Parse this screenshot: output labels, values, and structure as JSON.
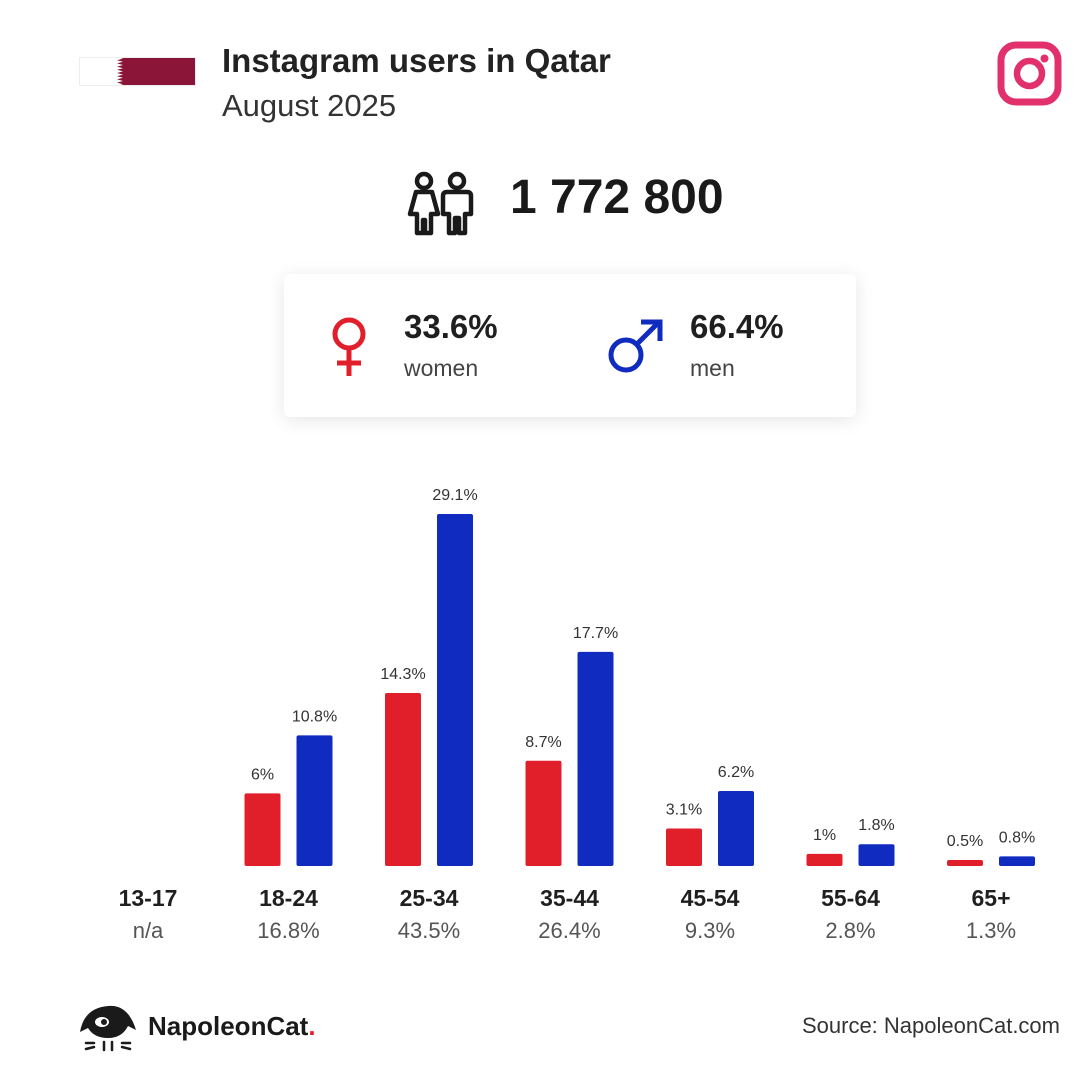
{
  "header": {
    "title": "Instagram users in Qatar",
    "subtitle": "August 2025",
    "flag_colors": [
      "#ffffff",
      "#8a1538"
    ],
    "logo_icon": "instagram-icon",
    "logo_color": "#e1306c"
  },
  "total": {
    "icon": "people-icon",
    "value": "1 772 800"
  },
  "gender": {
    "women": {
      "icon": "female-symbol-icon",
      "percent": "33.6%",
      "label": "women",
      "color": "#e01f2b"
    },
    "men": {
      "icon": "male-symbol-icon",
      "percent": "66.4%",
      "label": "men",
      "color": "#0f2bc0"
    }
  },
  "chart_data": {
    "type": "bar",
    "categories": [
      "13-17",
      "18-24",
      "25-34",
      "35-44",
      "45-54",
      "55-64",
      "65+"
    ],
    "category_totals": [
      "n/a",
      "16.8%",
      "43.5%",
      "26.4%",
      "9.3%",
      "2.8%",
      "1.3%"
    ],
    "series": [
      {
        "values": [
          null,
          6,
          14.3,
          8.7,
          3.1,
          1,
          0.5
        ],
        "labels": [
          "",
          "6%",
          "14.3%",
          "8.7%",
          "3.1%",
          "1%",
          "0.5%"
        ],
        "color": "#e01f2b"
      },
      {
        "values": [
          null,
          10.8,
          29.1,
          17.7,
          6.2,
          1.8,
          0.8
        ],
        "labels": [
          "",
          "10.8%",
          "29.1%",
          "17.7%",
          "6.2%",
          "1.8%",
          "0.8%"
        ],
        "color": "#0f2bc0"
      }
    ],
    "title": "",
    "xlabel": "",
    "ylabel": "",
    "ylim": [
      0,
      29.1
    ],
    "grid": false,
    "legend": "none"
  },
  "footer": {
    "brand_icon": "napoleoncat-logo-icon",
    "brand_name": "NapoleonCat",
    "brand_dot": ".",
    "source": "Source: NapoleonCat.com"
  }
}
